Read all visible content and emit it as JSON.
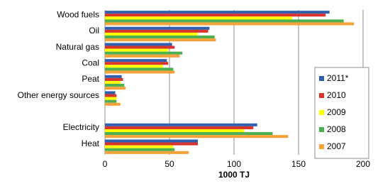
{
  "chart_data": {
    "type": "hbar",
    "categories": [
      "Wood fuels",
      "Oil",
      "Natural gas",
      "Coal",
      "Peat",
      "Other energy sources",
      null,
      "Electricity",
      "Heat"
    ],
    "series": [
      {
        "name": "2011*",
        "color": "#2f5fae",
        "values": [
          174,
          81,
          52,
          48,
          13,
          8,
          null,
          118,
          72
        ]
      },
      {
        "name": "2010",
        "color": "#d9342b",
        "values": [
          171,
          80,
          54,
          49,
          14,
          9,
          null,
          115,
          72
        ]
      },
      {
        "name": "2009",
        "color": "#ffff00",
        "values": [
          145,
          72,
          49,
          45,
          12,
          9,
          null,
          108,
          53
        ]
      },
      {
        "name": "2008",
        "color": "#4caf50",
        "values": [
          185,
          85,
          60,
          53,
          15,
          9,
          null,
          130,
          54
        ]
      },
      {
        "name": "2007",
        "color": "#f7a13a",
        "values": [
          193,
          86,
          58,
          54,
          16,
          12,
          null,
          142,
          65
        ]
      }
    ],
    "x_label": "1000 TJ",
    "xlim": [
      0,
      200
    ],
    "xticks": [
      0,
      50,
      100,
      150,
      200
    ],
    "grid": true,
    "legend": "right"
  }
}
